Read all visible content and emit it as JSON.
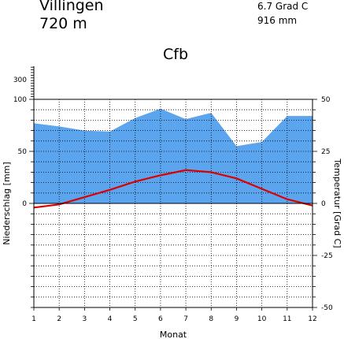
{
  "header": {
    "station": "Villingen",
    "elevation": "720 m",
    "mean_temperature": "6.7 Grad C",
    "annual_precipitation": "916 mm",
    "climate_class": "Cfb"
  },
  "colors": {
    "precipitation_fill": "#5ba4ee",
    "temperature_line": "#dd0000",
    "axis": "#000000",
    "grid": "#000000"
  },
  "chart_data": {
    "type": "area",
    "xlabel": "Monat",
    "ylabel_left": "Niederschlag [mm]",
    "ylabel_right": "Temperatur [Grad C]",
    "x": [
      1,
      2,
      3,
      4,
      5,
      6,
      7,
      8,
      9,
      10,
      11,
      12
    ],
    "x_ticks": [
      "1",
      "2",
      "3",
      "4",
      "5",
      "6",
      "7",
      "8",
      "9",
      "10",
      "11",
      "12"
    ],
    "left_ticks": [
      "0",
      "50",
      "100",
      "300"
    ],
    "right_ticks": [
      "-50",
      "-25",
      "0",
      "25",
      "50"
    ],
    "left_ylim": [
      0,
      100
    ],
    "right_ylim": [
      -50,
      50
    ],
    "grid": true,
    "series": [
      {
        "key": "precipitation",
        "axis": "left",
        "values": [
          77,
          74,
          70,
          69,
          82,
          91,
          81,
          87,
          55,
          59,
          84,
          84
        ]
      },
      {
        "key": "temperature",
        "axis": "right",
        "values": [
          -2,
          -0.5,
          3,
          6.5,
          10.5,
          13.5,
          16,
          15,
          12,
          7,
          2,
          -1
        ]
      }
    ]
  }
}
